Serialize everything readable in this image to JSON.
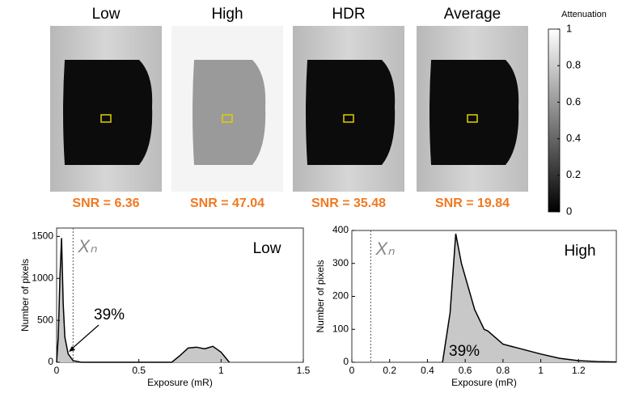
{
  "panels": [
    {
      "title": "Low",
      "snr": "SNR = 6.36"
    },
    {
      "title": "High",
      "snr": "SNR = 47.04"
    },
    {
      "title": "HDR",
      "snr": "SNR = 35.48"
    },
    {
      "title": "Average",
      "snr": "SNR = 19.84"
    }
  ],
  "colorbar": {
    "label": "Attenuation",
    "lim": [
      0,
      1
    ],
    "ticks": [
      0,
      0.2,
      0.4,
      0.6,
      0.8,
      1
    ]
  },
  "chart_data": [
    {
      "type": "histogram-line",
      "title": "Low",
      "xlabel": "Exposure (mR)",
      "ylabel": "Number of pixels",
      "x": [
        0,
        0.01,
        0.02,
        0.03,
        0.04,
        0.05,
        0.07,
        0.1,
        0.15,
        0.7,
        0.75,
        0.8,
        0.85,
        0.9,
        0.95,
        1.0,
        1.05
      ],
      "values": [
        0,
        300,
        1000,
        1480,
        700,
        300,
        100,
        20,
        0,
        0,
        80,
        170,
        180,
        160,
        190,
        120,
        0
      ],
      "xlim": [
        0,
        1.5
      ],
      "xticks": [
        0,
        0.5,
        1,
        1.5
      ],
      "ylim": [
        0,
        1600
      ],
      "yticks": [
        0,
        500,
        1000,
        1500
      ],
      "threshold": 0.1,
      "threshold_label": "Xₙ",
      "annotation": "39%",
      "fill": "#c8c8c8",
      "color": "#000000"
    },
    {
      "type": "histogram-line",
      "title": "High",
      "xlabel": "Exposure (mR)",
      "ylabel": "Number of pixels",
      "x": [
        0.48,
        0.52,
        0.55,
        0.58,
        0.6,
        0.65,
        0.7,
        0.72,
        0.75,
        0.8,
        0.9,
        1.0,
        1.1,
        1.2,
        1.3,
        1.4
      ],
      "values": [
        0,
        150,
        390,
        300,
        260,
        160,
        100,
        95,
        80,
        55,
        40,
        25,
        12,
        5,
        2,
        1
      ],
      "xlim": [
        0,
        1.4
      ],
      "xticks": [
        0,
        0.2,
        0.4,
        0.6,
        0.8,
        1,
        1.2
      ],
      "ylim": [
        0,
        400
      ],
      "yticks": [
        0,
        100,
        200,
        300,
        400
      ],
      "threshold": 0.1,
      "threshold_label": "Xₙ",
      "annotation": "39%",
      "fill": "#c8c8c8",
      "color": "#000000"
    }
  ]
}
